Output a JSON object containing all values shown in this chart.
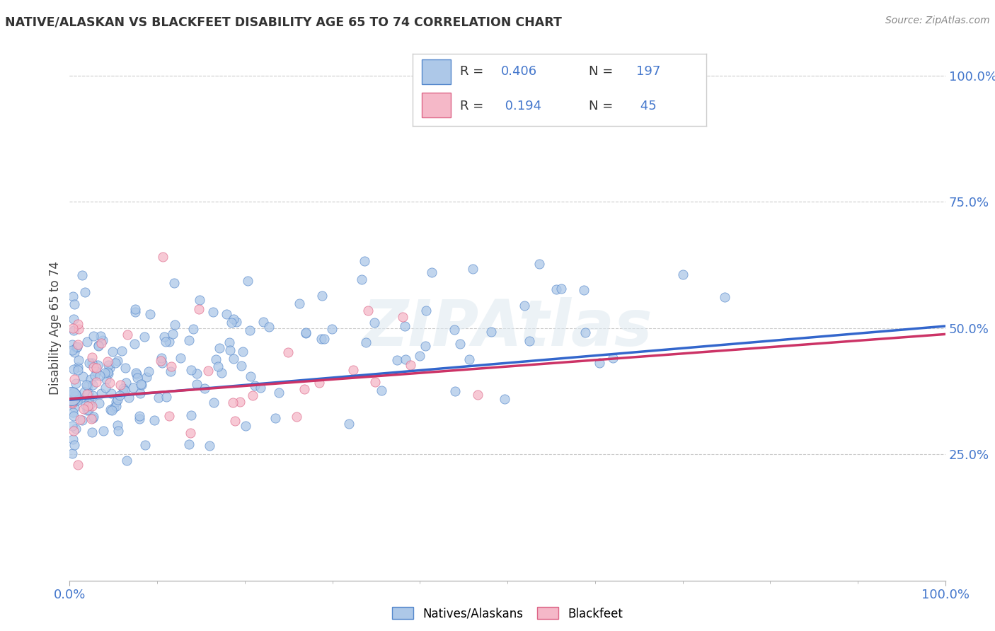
{
  "title": "NATIVE/ALASKAN VS BLACKFEET DISABILITY AGE 65 TO 74 CORRELATION CHART",
  "source": "Source: ZipAtlas.com",
  "ylabel": "Disability Age 65 to 74",
  "watermark": "ZIPAtlas",
  "blue_R": 0.406,
  "blue_N": 197,
  "pink_R": 0.194,
  "pink_N": 45,
  "blue_color": "#adc8e8",
  "blue_edge_color": "#5588cc",
  "blue_line_color": "#3366cc",
  "pink_color": "#f5b8c8",
  "pink_edge_color": "#dd6688",
  "pink_line_color": "#cc3366",
  "legend_text_color": "#333333",
  "legend_value_color": "#4477cc",
  "background_color": "#ffffff",
  "grid_color": "#dddddd",
  "grid_dash_color": "#cccccc",
  "title_color": "#333333",
  "axis_label_color": "#444444",
  "tick_color": "#4477cc",
  "xlim": [
    0,
    1
  ],
  "ylim": [
    0,
    1
  ],
  "blue_line_y0": 0.358,
  "blue_line_y1": 0.504,
  "pink_line_y0": 0.36,
  "pink_line_y1": 0.488
}
